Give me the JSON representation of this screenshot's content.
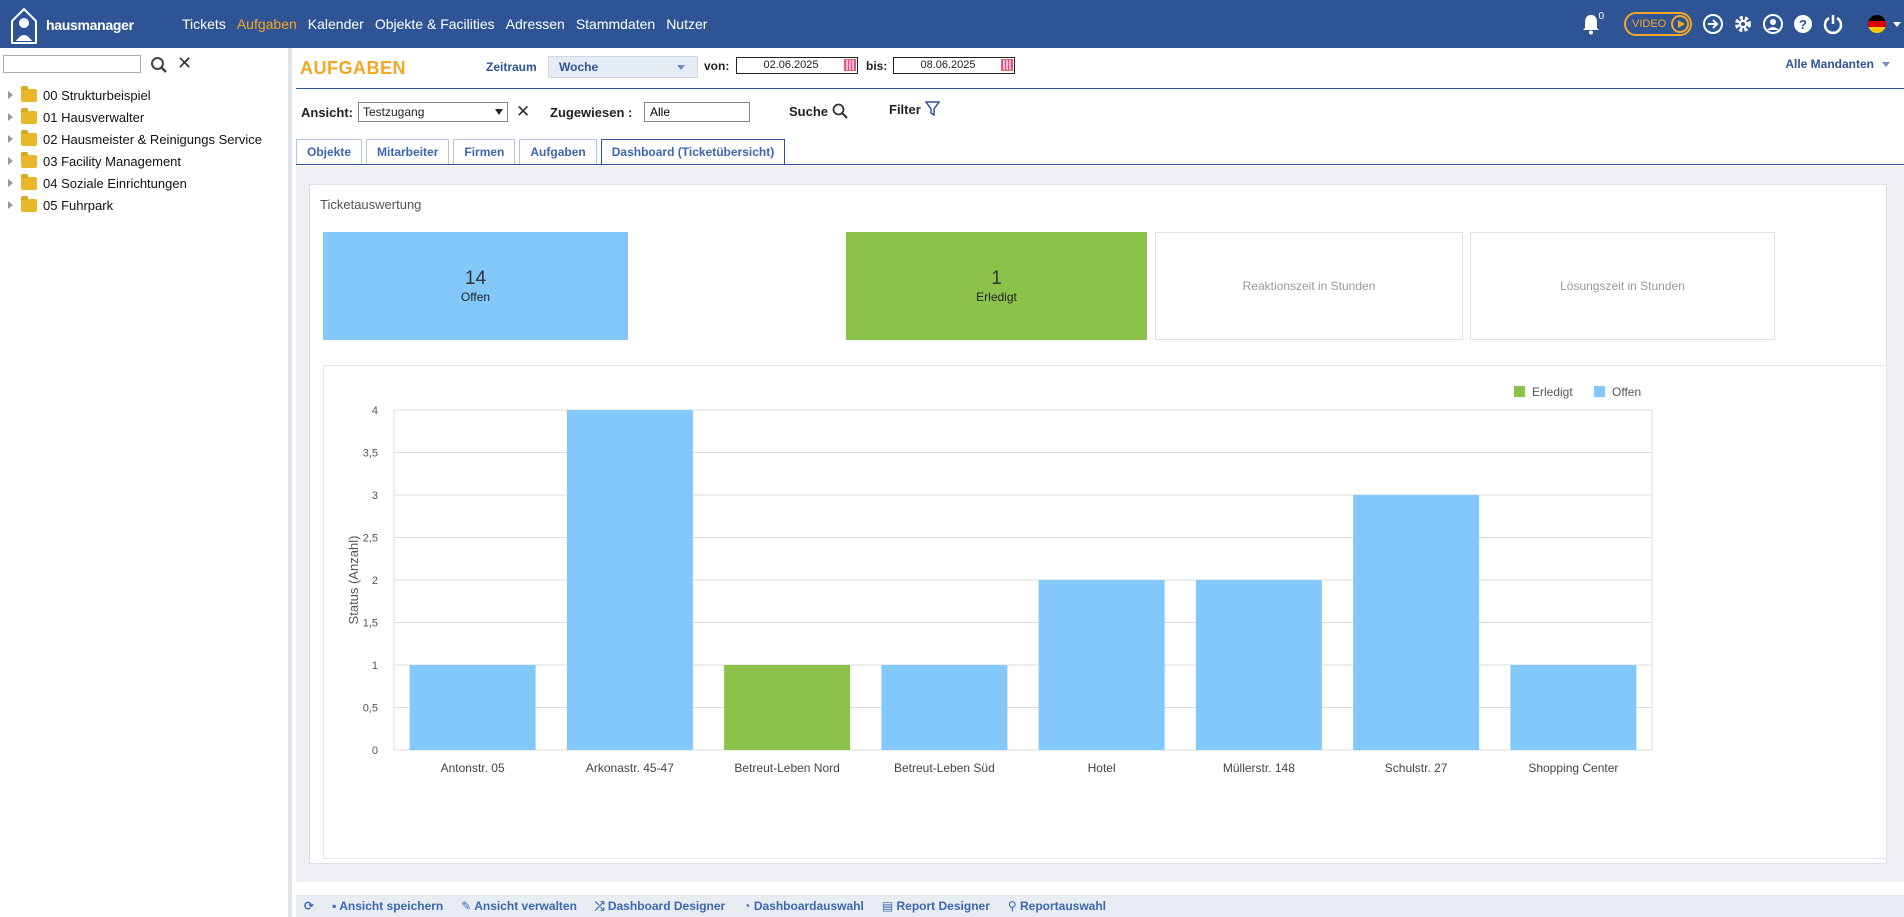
{
  "app": {
    "logo_text": "hausmanager",
    "nav": [
      "Tickets",
      "Aufgaben",
      "Kalender",
      "Objekte & Facilities",
      "Adressen",
      "Stammdaten",
      "Nutzer"
    ],
    "active_nav": "Aufgaben",
    "notification_count": "0",
    "video_label": "VIDEO",
    "accent_color": "#f5a623",
    "brand_color": "#2f5496"
  },
  "sidebar": {
    "search_value": "",
    "items": [
      {
        "label": "00 Strukturbeispiel"
      },
      {
        "label": "01 Hausverwalter"
      },
      {
        "label": "02 Hausmeister & Reinigungs Service"
      },
      {
        "label": "03 Facility Management"
      },
      {
        "label": "04 Soziale Einrichtungen"
      },
      {
        "label": "05 Fuhrpark"
      }
    ]
  },
  "header": {
    "title": "AUFGABEN",
    "zeitraum_label": "Zeitraum",
    "zeitraum_value": "Woche",
    "von_label": "von:",
    "von_value": "02.06.2025",
    "bis_label": "bis:",
    "bis_value": "08.06.2025",
    "mandanten": "Alle Mandanten"
  },
  "filters": {
    "ansicht_label": "Ansicht:",
    "ansicht_value": "Testzugang",
    "zugewiesen_label": "Zugewiesen :",
    "zugewiesen_value": "Alle",
    "suche_label": "Suche",
    "filter_label": "Filter"
  },
  "tabs": [
    {
      "label": "Objekte",
      "active": false
    },
    {
      "label": "Mitarbeiter",
      "active": false
    },
    {
      "label": "Firmen",
      "active": false
    },
    {
      "label": "Aufgaben",
      "active": false
    },
    {
      "label": "Dashboard (Ticketübersicht)",
      "active": true
    }
  ],
  "dashboard": {
    "title": "Ticketauswertung",
    "kpis": {
      "offen_value": "14",
      "offen_label": "Offen",
      "erledigt_value": "1",
      "erledigt_label": "Erledigt",
      "reaktion_label": "Reaktionszeit in Stunden",
      "loesung_label": "Lösungszeit in Stunden"
    }
  },
  "chart_data": {
    "type": "bar",
    "categories": [
      "Antonstr. 05",
      "Arkonastr. 45-47",
      "Betreut-Leben Nord",
      "Betreut-Leben Süd",
      "Hotel",
      "Müllerstr. 148",
      "Schulstr. 27",
      "Shopping Center"
    ],
    "series": [
      {
        "name": "Erledigt",
        "color": "#8bc34a",
        "values": [
          0,
          0,
          1,
          0,
          0,
          0,
          0,
          0
        ]
      },
      {
        "name": "Offen",
        "color": "#82c8fb",
        "values": [
          1,
          4,
          0,
          1,
          2,
          2,
          3,
          1
        ]
      }
    ],
    "ylabel": "Status (Anzahl)",
    "ylim": [
      0,
      4
    ],
    "yticks": [
      "0",
      "0,5",
      "1",
      "1,5",
      "2",
      "2,5",
      "3",
      "3,5",
      "4"
    ],
    "grid": true,
    "legend": "top-right"
  },
  "footer": {
    "items": [
      "Ansicht speichern",
      "Ansicht verwalten",
      "Dashboard Designer",
      "Dashboardauswahl",
      "Report Designer",
      "Reportauswahl"
    ]
  }
}
